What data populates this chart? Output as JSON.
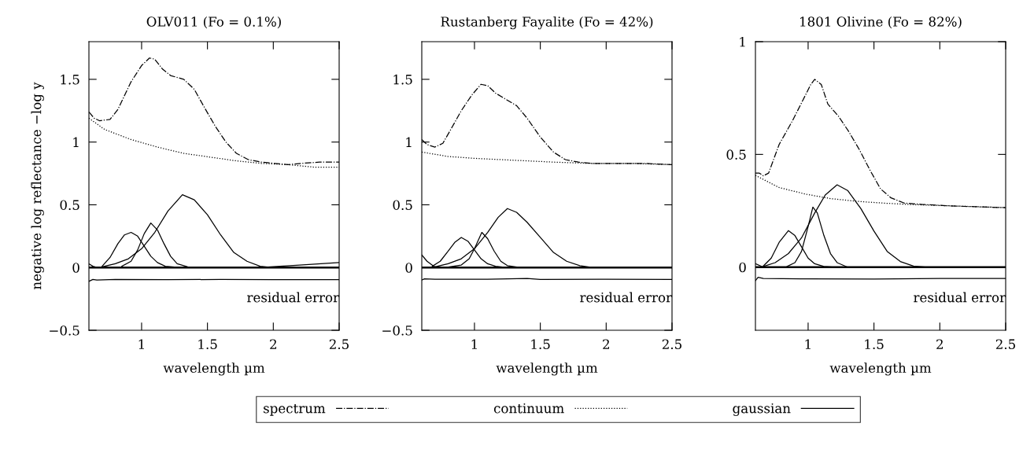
{
  "chart_data": [
    {
      "type": "line",
      "title": "OLV011 (Fo = 0.1%)",
      "xlabel": "wavelength µm",
      "ylabel": "negative log reflectance −log y",
      "xlim": [
        0.6,
        2.5
      ],
      "xticks": [
        1,
        1.5,
        2,
        2.5
      ],
      "ylim": [
        -0.5,
        1.8
      ],
      "yticks": [
        -0.5,
        0,
        0.5,
        1,
        1.5
      ],
      "grid": false,
      "legend": "bottom",
      "ref_lines": [
        {
          "axis": "y",
          "value": 0,
          "color": "#000000"
        }
      ],
      "annotations": [
        "residual error"
      ],
      "series": [
        {
          "name": "spectrum",
          "color": "#000000",
          "line_style": "dashdot",
          "x": [
            0.6,
            0.64,
            0.68,
            0.76,
            0.82,
            0.92,
            1.0,
            1.06,
            1.1,
            1.16,
            1.22,
            1.32,
            1.4,
            1.48,
            1.56,
            1.64,
            1.72,
            1.81,
            1.91,
            2.01,
            2.11,
            2.21,
            2.35,
            2.5
          ],
          "values": [
            1.24,
            1.19,
            1.17,
            1.18,
            1.26,
            1.48,
            1.61,
            1.67,
            1.66,
            1.58,
            1.53,
            1.5,
            1.42,
            1.27,
            1.125,
            1.0,
            0.91,
            0.86,
            0.84,
            0.83,
            0.82,
            0.83,
            0.84,
            0.84
          ]
        },
        {
          "name": "continuum",
          "color": "#000000",
          "line_style": "dotted",
          "x": [
            0.6,
            0.72,
            0.92,
            1.12,
            1.32,
            1.52,
            1.72,
            1.91,
            2.11,
            2.31,
            2.5
          ],
          "values": [
            1.19,
            1.1,
            1.02,
            0.96,
            0.91,
            0.88,
            0.85,
            0.83,
            0.82,
            0.8,
            0.8
          ]
        },
        {
          "name": "gaussian",
          "color": "#000000",
          "line_style": "solid",
          "x": [
            0.7,
            0.76,
            0.82,
            0.87,
            0.92,
            0.97,
            1.02,
            1.07,
            1.12,
            1.18,
            1.3
          ],
          "values": [
            0.01,
            0.08,
            0.19,
            0.26,
            0.28,
            0.25,
            0.17,
            0.09,
            0.04,
            0.01,
            0
          ]
        },
        {
          "color": "#000000",
          "line_style": "solid",
          "x": [
            0.85,
            0.92,
            0.97,
            1.02,
            1.07,
            1.12,
            1.17,
            1.22,
            1.27,
            1.35,
            1.45
          ],
          "values": [
            0.01,
            0.05,
            0.14,
            0.27,
            0.355,
            0.3,
            0.19,
            0.09,
            0.03,
            0.005,
            0
          ]
        },
        {
          "color": "#000000",
          "line_style": "solid",
          "x": [
            0.7,
            0.8,
            0.9,
            1.0,
            1.1,
            1.2,
            1.31,
            1.4,
            1.5,
            1.6,
            1.7,
            1.8,
            1.9,
            2.0
          ],
          "values": [
            0.005,
            0.03,
            0.07,
            0.15,
            0.28,
            0.45,
            0.58,
            0.54,
            0.42,
            0.26,
            0.12,
            0.05,
            0.01,
            0
          ]
        },
        {
          "color": "#000000",
          "line_style": "solid",
          "x": [
            0.6,
            0.63,
            0.66,
            1.9,
            2.2,
            2.5
          ],
          "values": [
            0.03,
            0.01,
            0,
            0,
            0.02,
            0.04
          ]
        },
        {
          "color": "#000000",
          "line_style": "solid",
          "x": [
            0.6,
            0.63,
            0.66,
            0.8,
            1.2,
            1.6,
            2.0,
            2.5
          ],
          "values": [
            -0.11,
            -0.095,
            -0.1,
            -0.095,
            -0.097,
            -0.095,
            -0.097,
            -0.097
          ]
        }
      ]
    },
    {
      "type": "line",
      "title": "Rustanberg Fayalite (Fo = 42%)",
      "xlabel": "wavelength µm",
      "xlim": [
        0.6,
        2.5
      ],
      "xticks": [
        1,
        1.5,
        2,
        2.5
      ],
      "ylim": [
        -0.5,
        1.8
      ],
      "yticks": [
        -0.5,
        0,
        0.5,
        1,
        1.5
      ],
      "grid": false,
      "ref_lines": [
        {
          "axis": "y",
          "value": 0,
          "color": "#000000"
        }
      ],
      "annotations": [
        "residual error"
      ],
      "series": [
        {
          "color": "#000000",
          "line_style": "dashdot",
          "x": [
            0.6,
            0.64,
            0.7,
            0.76,
            0.82,
            0.9,
            0.98,
            1.05,
            1.1,
            1.16,
            1.24,
            1.32,
            1.4,
            1.5,
            1.6,
            1.69,
            1.79,
            1.89,
            2.09,
            2.29,
            2.5
          ],
          "values": [
            1.02,
            0.98,
            0.96,
            0.99,
            1.1,
            1.25,
            1.375,
            1.46,
            1.45,
            1.39,
            1.34,
            1.29,
            1.19,
            1.04,
            0.92,
            0.86,
            0.84,
            0.83,
            0.83,
            0.83,
            0.82
          ]
        },
        {
          "color": "#000000",
          "line_style": "dotted",
          "x": [
            0.6,
            0.8,
            1.0,
            1.3,
            1.6,
            1.89,
            2.19,
            2.5
          ],
          "values": [
            0.92,
            0.885,
            0.87,
            0.855,
            0.84,
            0.83,
            0.83,
            0.82
          ]
        },
        {
          "color": "#000000",
          "line_style": "solid",
          "x": [
            0.68,
            0.74,
            0.8,
            0.85,
            0.9,
            0.95,
            1.0,
            1.05,
            1.1,
            1.16,
            1.25
          ],
          "values": [
            0.01,
            0.05,
            0.13,
            0.2,
            0.24,
            0.21,
            0.14,
            0.07,
            0.03,
            0.01,
            0
          ]
        },
        {
          "color": "#000000",
          "line_style": "solid",
          "x": [
            0.8,
            0.9,
            0.96,
            1.0,
            1.056,
            1.1,
            1.15,
            1.2,
            1.25,
            1.35
          ],
          "values": [
            0.003,
            0.02,
            0.07,
            0.15,
            0.28,
            0.23,
            0.13,
            0.05,
            0.015,
            0
          ]
        },
        {
          "color": "#000000",
          "line_style": "solid",
          "x": [
            0.7,
            0.8,
            0.9,
            1.0,
            1.1,
            1.18,
            1.25,
            1.32,
            1.4,
            1.5,
            1.6,
            1.7,
            1.8,
            1.9
          ],
          "values": [
            0.005,
            0.03,
            0.07,
            0.15,
            0.28,
            0.4,
            0.47,
            0.44,
            0.36,
            0.24,
            0.12,
            0.05,
            0.015,
            0
          ]
        },
        {
          "color": "#000000",
          "line_style": "solid",
          "x": [
            0.6,
            0.64,
            0.69,
            0.72
          ],
          "values": [
            0.1,
            0.05,
            0.01,
            0
          ]
        },
        {
          "color": "#000000",
          "line_style": "solid",
          "x": [
            0.6,
            0.62,
            0.7,
            1.1,
            1.4,
            1.5,
            2.0,
            2.5
          ],
          "values": [
            -0.1,
            -0.09,
            -0.093,
            -0.093,
            -0.087,
            -0.095,
            -0.093,
            -0.095
          ]
        }
      ]
    },
    {
      "type": "line",
      "title": "1801 Olivine (Fo = 82%)",
      "xlabel": "wavelength µm",
      "xlim": [
        0.6,
        2.5
      ],
      "xticks": [
        1,
        1.5,
        2,
        2.5
      ],
      "ylim": [
        -0.28,
        1
      ],
      "yticks": [
        0,
        0.5,
        1
      ],
      "grid": false,
      "ref_lines": [
        {
          "axis": "y",
          "value": 0,
          "color": "#000000"
        }
      ],
      "annotations": [
        "residual error"
      ],
      "series": [
        {
          "color": "#000000",
          "line_style": "dashdot",
          "x": [
            0.6,
            0.63,
            0.66,
            0.7,
            0.78,
            0.88,
            0.96,
            1.02,
            1.05,
            1.1,
            1.15,
            1.23,
            1.31,
            1.39,
            1.47,
            1.55,
            1.63,
            1.73,
            1.87,
            2.07,
            2.27,
            2.5
          ],
          "values": [
            0.417,
            0.417,
            0.405,
            0.417,
            0.544,
            0.648,
            0.74,
            0.81,
            0.833,
            0.81,
            0.723,
            0.67,
            0.6,
            0.52,
            0.43,
            0.347,
            0.307,
            0.284,
            0.278,
            0.272,
            0.268,
            0.264
          ]
        },
        {
          "color": "#000000",
          "line_style": "dotted",
          "x": [
            0.6,
            0.78,
            0.98,
            1.17,
            1.37,
            1.57,
            1.77,
            2.07,
            2.5
          ],
          "values": [
            0.407,
            0.353,
            0.324,
            0.304,
            0.292,
            0.284,
            0.278,
            0.272,
            0.264
          ]
        },
        {
          "color": "#000000",
          "line_style": "solid",
          "x": [
            0.66,
            0.72,
            0.78,
            0.85,
            0.9,
            0.95,
            1.0,
            1.05,
            1.12,
            1.2
          ],
          "values": [
            0.005,
            0.04,
            0.11,
            0.162,
            0.14,
            0.09,
            0.04,
            0.015,
            0.003,
            0
          ]
        },
        {
          "color": "#000000",
          "line_style": "solid",
          "x": [
            0.84,
            0.9,
            0.95,
            1.0,
            1.036,
            1.07,
            1.12,
            1.17,
            1.22,
            1.3
          ],
          "values": [
            0.003,
            0.02,
            0.07,
            0.18,
            0.266,
            0.24,
            0.14,
            0.06,
            0.02,
            0
          ]
        },
        {
          "color": "#000000",
          "line_style": "solid",
          "x": [
            0.66,
            0.75,
            0.85,
            0.95,
            1.05,
            1.13,
            1.22,
            1.3,
            1.4,
            1.5,
            1.6,
            1.7,
            1.8,
            1.9
          ],
          "values": [
            0.003,
            0.02,
            0.06,
            0.13,
            0.24,
            0.32,
            0.365,
            0.34,
            0.26,
            0.16,
            0.07,
            0.025,
            0.005,
            0
          ]
        },
        {
          "color": "#000000",
          "line_style": "solid",
          "x": [
            0.6,
            0.66
          ],
          "values": [
            0.015,
            0
          ]
        },
        {
          "color": "#000000",
          "line_style": "solid",
          "x": [
            0.6,
            0.62,
            0.66,
            1.0,
            1.5,
            2.0,
            2.5
          ],
          "values": [
            -0.06,
            -0.045,
            -0.05,
            -0.052,
            -0.053,
            -0.05,
            -0.05
          ]
        }
      ]
    }
  ]
}
